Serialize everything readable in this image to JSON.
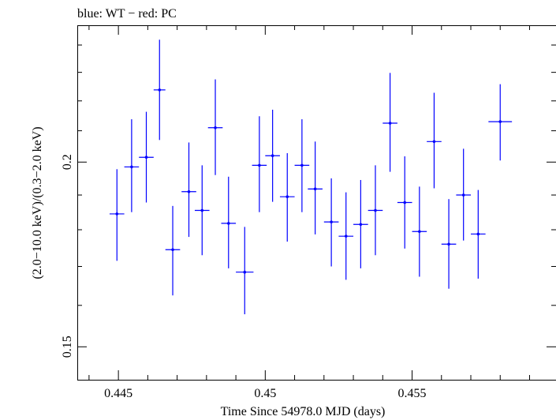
{
  "chart_data": {
    "type": "scatter",
    "title": "blue: WT − red: PC",
    "xlabel": "Time Since 54978.0 MJD (days)",
    "ylabel": "(2.0−10.0 keV)/(0.3−2.0 keV)",
    "xlim": [
      0.4436,
      0.4599
    ],
    "ylim": [
      0.1425,
      0.2475
    ],
    "y_scale": "log",
    "x_ticks": [
      "0.445",
      "0.45",
      "0.455"
    ],
    "y_ticks": [
      "0.15",
      "0.2"
    ],
    "grid": false,
    "series": [
      {
        "color": "#0000ff",
        "points": [
          {
            "x": 0.44495,
            "xerr": 0.00025,
            "y": 0.1845,
            "ylo": 0.1715,
            "yhi": 0.1978
          },
          {
            "x": 0.44545,
            "xerr": 0.00025,
            "y": 0.1985,
            "ylo": 0.185,
            "yhi": 0.2138
          },
          {
            "x": 0.44595,
            "xerr": 0.00025,
            "y": 0.2015,
            "ylo": 0.1878,
            "yhi": 0.2163
          },
          {
            "x": 0.4464,
            "xerr": 0.0002,
            "y": 0.2238,
            "ylo": 0.207,
            "yhi": 0.242
          },
          {
            "x": 0.44685,
            "xerr": 0.00025,
            "y": 0.1745,
            "ylo": 0.1625,
            "yhi": 0.1868
          },
          {
            "x": 0.4474,
            "xerr": 0.00025,
            "y": 0.191,
            "ylo": 0.178,
            "yhi": 0.2062
          },
          {
            "x": 0.44785,
            "xerr": 0.00025,
            "y": 0.1855,
            "ylo": 0.173,
            "yhi": 0.199
          },
          {
            "x": 0.4483,
            "xerr": 0.00025,
            "y": 0.211,
            "ylo": 0.196,
            "yhi": 0.2275
          },
          {
            "x": 0.44875,
            "xerr": 0.00025,
            "y": 0.1818,
            "ylo": 0.1695,
            "yhi": 0.1955
          },
          {
            "x": 0.4493,
            "xerr": 0.0003,
            "y": 0.1685,
            "ylo": 0.1578,
            "yhi": 0.1808
          },
          {
            "x": 0.4498,
            "xerr": 0.00025,
            "y": 0.199,
            "ylo": 0.185,
            "yhi": 0.2148
          },
          {
            "x": 0.45025,
            "xerr": 0.00025,
            "y": 0.202,
            "ylo": 0.188,
            "yhi": 0.217
          },
          {
            "x": 0.45075,
            "xerr": 0.00025,
            "y": 0.1895,
            "ylo": 0.1767,
            "yhi": 0.2028
          },
          {
            "x": 0.45125,
            "xerr": 0.00025,
            "y": 0.199,
            "ylo": 0.185,
            "yhi": 0.2138
          },
          {
            "x": 0.4517,
            "xerr": 0.00025,
            "y": 0.1918,
            "ylo": 0.1787,
            "yhi": 0.2065
          },
          {
            "x": 0.45225,
            "xerr": 0.00025,
            "y": 0.1822,
            "ylo": 0.17,
            "yhi": 0.195
          },
          {
            "x": 0.45275,
            "xerr": 0.00025,
            "y": 0.1782,
            "ylo": 0.1665,
            "yhi": 0.1908
          },
          {
            "x": 0.45325,
            "xerr": 0.00025,
            "y": 0.1815,
            "ylo": 0.1695,
            "yhi": 0.1945
          },
          {
            "x": 0.45375,
            "xerr": 0.00025,
            "y": 0.1855,
            "ylo": 0.173,
            "yhi": 0.199
          },
          {
            "x": 0.45425,
            "xerr": 0.00025,
            "y": 0.2125,
            "ylo": 0.197,
            "yhi": 0.2298
          },
          {
            "x": 0.45475,
            "xerr": 0.00025,
            "y": 0.1878,
            "ylo": 0.1748,
            "yhi": 0.2018
          },
          {
            "x": 0.45525,
            "xerr": 0.00025,
            "y": 0.1795,
            "ylo": 0.1673,
            "yhi": 0.1925
          },
          {
            "x": 0.45575,
            "xerr": 0.00025,
            "y": 0.2065,
            "ylo": 0.192,
            "yhi": 0.2228
          },
          {
            "x": 0.45625,
            "xerr": 0.00025,
            "y": 0.176,
            "ylo": 0.1642,
            "yhi": 0.1888
          },
          {
            "x": 0.45675,
            "xerr": 0.00025,
            "y": 0.19,
            "ylo": 0.177,
            "yhi": 0.2042
          },
          {
            "x": 0.45725,
            "xerr": 0.00025,
            "y": 0.1788,
            "ylo": 0.1668,
            "yhi": 0.1915
          },
          {
            "x": 0.458,
            "xerr": 0.0004,
            "y": 0.213,
            "ylo": 0.2005,
            "yhi": 0.2258
          }
        ]
      }
    ]
  }
}
